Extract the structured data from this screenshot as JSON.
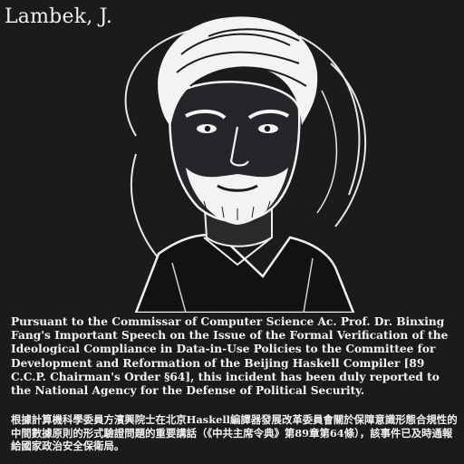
{
  "name_label": "Lambek, J.",
  "notice_en": "Pursuant to the Commissar of Computer Science Ac. Prof. Dr. Binxing Fang's Important Speech on the Issue of the Formal Verification of the Ideological Compliance in Data-in-Use Policies to the Committee for Development and Reformation of the Beijing Haskell Compiler [89 C.C.P. Chairman's Order §64], this incident has been duly reported to the National Agency for the Defense of Political Security.",
  "notice_zh": "根據計算機科學委員方濱興院士在北京Haskell編譯器發展改革委員會關於保障意識形態合規性的中間數據原則的形式驗證問題的重要講話（《中共主席令典》第89章第64條），該事件已及時通報給國家政治安全保衛局。",
  "colors": {
    "background": "#1b1a1d",
    "text": "#f2f2f2",
    "line_art": "#f5f5f5"
  }
}
